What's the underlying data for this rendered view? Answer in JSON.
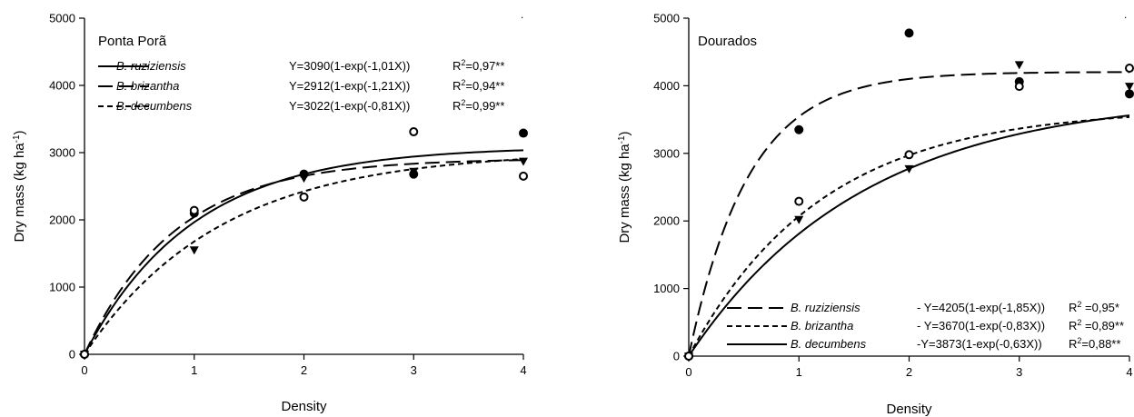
{
  "chart_data": [
    {
      "type": "scatter",
      "panel_title": "Ponta Porã",
      "xlabel": "Density",
      "ylabel_main": "Dry mass (kg ha",
      "ylabel_sup": "-1",
      "ylabel_end": ")",
      "xlim": [
        0,
        4
      ],
      "ylim": [
        0,
        5000
      ],
      "xticks": [
        "0",
        "1",
        "2",
        "3",
        "4"
      ],
      "yticks": [
        "0",
        "1000",
        "2000",
        "3000",
        "4000",
        "5000"
      ],
      "grid": false,
      "legend_position": "top-left",
      "series": [
        {
          "name": "B. ruziziensis",
          "equation": "Y=3090(1-exp(-1,01X))",
          "r2_label": "R",
          "r2_sup": "2",
          "r2_value": "=0,97**",
          "line_style": "solid",
          "model": {
            "a": 3090,
            "b": 1.01
          },
          "marker": "filled-circle",
          "points": [
            [
              0,
              0
            ],
            [
              1,
              2100
            ],
            [
              2,
              2680
            ],
            [
              3,
              2680
            ],
            [
              4,
              3290
            ]
          ]
        },
        {
          "name": "B. brizantha",
          "equation": "Y=2912(1-exp(-1,21X))",
          "r2_label": "R",
          "r2_sup": "2",
          "r2_value": "=0,94**",
          "line_style": "long-dash",
          "model": {
            "a": 2912,
            "b": 1.21
          },
          "marker": "triangle-down",
          "points": [
            [
              0,
              0
            ],
            [
              1,
              1550
            ],
            [
              2,
              2620
            ],
            [
              3,
              2720
            ],
            [
              4,
              2870
            ]
          ]
        },
        {
          "name": "B. decumbens",
          "equation": "Y=3022(1-exp(-0,81X))",
          "r2_label": "R",
          "r2_sup": "2",
          "r2_value": "=0,99**",
          "line_style": "short-dash",
          "model": {
            "a": 3022,
            "b": 0.81
          },
          "marker": "open-circle",
          "points": [
            [
              0,
              0
            ],
            [
              1,
              2140
            ],
            [
              2,
              2340
            ],
            [
              3,
              3310
            ],
            [
              4,
              2650
            ]
          ]
        }
      ]
    },
    {
      "type": "scatter",
      "panel_title": "Dourados",
      "xlabel": "Density",
      "ylabel_main": "Dry mass (kg ha",
      "ylabel_sup": "-1",
      "ylabel_end": ")",
      "xlim": [
        0,
        4
      ],
      "ylim": [
        0,
        5000
      ],
      "xticks": [
        "0",
        "1",
        "2",
        "3",
        "4"
      ],
      "yticks": [
        "0",
        "1000",
        "2000",
        "3000",
        "4000",
        "5000"
      ],
      "grid": false,
      "legend_position": "bottom-right",
      "series": [
        {
          "name": "B. ruziziensis",
          "equation": "- Y=4205(1-exp(-1,85X))",
          "r2_label": "R",
          "r2_sup": "2",
          "r2_value": " =0,95*",
          "line_style": "long-dash",
          "model": {
            "a": 4205,
            "b": 1.85
          },
          "marker": "filled-circle",
          "points": [
            [
              0,
              0
            ],
            [
              1,
              3350
            ],
            [
              2,
              4780
            ],
            [
              3,
              4060
            ],
            [
              4,
              3880
            ]
          ]
        },
        {
          "name": "B. brizantha",
          "equation": "-   Y=3670(1-exp(-0,83X))",
          "r2_label": "R",
          "r2_sup": "2",
          "r2_value": " =0,89**",
          "line_style": "short-dash",
          "model": {
            "a": 3670,
            "b": 0.83
          },
          "marker": "triangle-down",
          "points": [
            [
              0,
              0
            ],
            [
              1,
              2020
            ],
            [
              2,
              2770
            ],
            [
              3,
              4310
            ],
            [
              4,
              3990
            ]
          ]
        },
        {
          "name": "B. decumbens",
          "equation": "-Y=3873(1-exp(-0,63X))",
          "r2_label": "R",
          "r2_sup": "2",
          "r2_value": "=0,88**",
          "line_style": "solid",
          "model": {
            "a": 3873,
            "b": 0.63
          },
          "marker": "open-circle",
          "points": [
            [
              0,
              0
            ],
            [
              1,
              2290
            ],
            [
              2,
              2980
            ],
            [
              3,
              3990
            ],
            [
              4,
              4260
            ]
          ]
        }
      ]
    }
  ]
}
